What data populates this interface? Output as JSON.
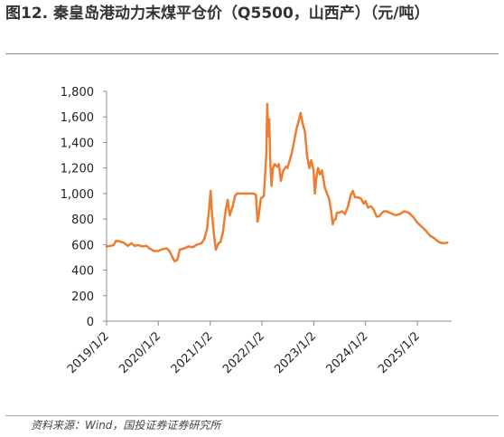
{
  "figure": {
    "title": "图12. 秦皇岛港动力末煤平仓价（Q5500，山西产）（元/吨）",
    "source": "资料来源：Wind，国投证券证券研究所"
  },
  "chart_data": {
    "type": "line",
    "title": "图12. 秦皇岛港动力末煤平仓价（Q5500，山西产）（元/吨）",
    "xlabel": "",
    "ylabel": "",
    "ylim": [
      0,
      1800
    ],
    "yticks": [
      "0",
      "200",
      "400",
      "600",
      "800",
      "1,000",
      "1,200",
      "1,400",
      "1,600",
      "1,800"
    ],
    "xticks": [
      "2019/1/2",
      "2020/1/2",
      "2021/1/2",
      "2022/1/2",
      "2023/1/2",
      "2024/1/2",
      "2025/1/2"
    ],
    "xlim": [
      "2019-01-02",
      "2025-08-31"
    ],
    "grid": false,
    "color": "#ED7D31",
    "series": [
      {
        "values": [
          [
            "2019-01-02",
            585
          ],
          [
            "2019-02-01",
            590
          ],
          [
            "2019-02-20",
            595
          ],
          [
            "2019-03-10",
            630
          ],
          [
            "2019-04-05",
            625
          ],
          [
            "2019-05-01",
            615
          ],
          [
            "2019-06-01",
            590
          ],
          [
            "2019-06-25",
            610
          ],
          [
            "2019-07-20",
            590
          ],
          [
            "2019-08-15",
            595
          ],
          [
            "2019-09-15",
            585
          ],
          [
            "2019-10-10",
            590
          ],
          [
            "2019-11-01",
            570
          ],
          [
            "2019-12-01",
            550
          ],
          [
            "2020-01-02",
            550
          ],
          [
            "2020-02-01",
            565
          ],
          [
            "2020-03-01",
            570
          ],
          [
            "2020-03-20",
            550
          ],
          [
            "2020-04-10",
            500
          ],
          [
            "2020-04-25",
            470
          ],
          [
            "2020-05-15",
            480
          ],
          [
            "2020-06-01",
            560
          ],
          [
            "2020-07-01",
            570
          ],
          [
            "2020-08-01",
            585
          ],
          [
            "2020-09-01",
            580
          ],
          [
            "2020-10-01",
            600
          ],
          [
            "2020-11-01",
            610
          ],
          [
            "2020-11-20",
            640
          ],
          [
            "2020-12-10",
            720
          ],
          [
            "2020-12-25",
            880
          ],
          [
            "2021-01-05",
            1020
          ],
          [
            "2021-01-15",
            830
          ],
          [
            "2021-02-01",
            640
          ],
          [
            "2021-02-10",
            560
          ],
          [
            "2021-03-01",
            610
          ],
          [
            "2021-03-15",
            620
          ],
          [
            "2021-04-01",
            690
          ],
          [
            "2021-04-20",
            860
          ],
          [
            "2021-05-05",
            950
          ],
          [
            "2021-05-20",
            830
          ],
          [
            "2021-06-10",
            900
          ],
          [
            "2021-06-25",
            980
          ],
          [
            "2021-07-10",
            1000
          ],
          [
            "2021-09-01",
            1000
          ],
          [
            "2021-10-01",
            1000
          ],
          [
            "2021-11-01",
            1000
          ],
          [
            "2021-11-20",
            990
          ],
          [
            "2021-12-01",
            780
          ],
          [
            "2021-12-10",
            830
          ],
          [
            "2021-12-25",
            960
          ],
          [
            "2022-01-15",
            980
          ],
          [
            "2022-02-01",
            1300
          ],
          [
            "2022-02-08",
            1700
          ],
          [
            "2022-02-15",
            1450
          ],
          [
            "2022-02-22",
            1580
          ],
          [
            "2022-03-01",
            1250
          ],
          [
            "2022-03-10",
            1060
          ],
          [
            "2022-03-20",
            1200
          ],
          [
            "2022-04-01",
            1230
          ],
          [
            "2022-04-20",
            1210
          ],
          [
            "2022-05-01",
            1230
          ],
          [
            "2022-05-15",
            1100
          ],
          [
            "2022-06-01",
            1180
          ],
          [
            "2022-06-20",
            1210
          ],
          [
            "2022-07-01",
            1200
          ],
          [
            "2022-08-01",
            1320
          ],
          [
            "2022-09-01",
            1500
          ],
          [
            "2022-09-20",
            1580
          ],
          [
            "2022-10-01",
            1630
          ],
          [
            "2022-10-15",
            1550
          ],
          [
            "2022-11-01",
            1480
          ],
          [
            "2022-11-15",
            1300
          ],
          [
            "2022-12-01",
            1200
          ],
          [
            "2022-12-15",
            1260
          ],
          [
            "2023-01-01",
            1180
          ],
          [
            "2023-01-10",
            1000
          ],
          [
            "2023-01-20",
            1120
          ],
          [
            "2023-02-01",
            1200
          ],
          [
            "2023-02-15",
            1150
          ],
          [
            "2023-03-01",
            1180
          ],
          [
            "2023-03-20",
            1050
          ],
          [
            "2023-04-05",
            1000
          ],
          [
            "2023-04-20",
            960
          ],
          [
            "2023-05-05",
            860
          ],
          [
            "2023-05-15",
            760
          ],
          [
            "2023-05-25",
            790
          ],
          [
            "2023-06-05",
            800
          ],
          [
            "2023-06-15",
            850
          ],
          [
            "2023-07-01",
            850
          ],
          [
            "2023-07-20",
            860
          ],
          [
            "2023-08-10",
            840
          ],
          [
            "2023-09-01",
            900
          ],
          [
            "2023-09-20",
            990
          ],
          [
            "2023-10-05",
            1020
          ],
          [
            "2023-10-20",
            970
          ],
          [
            "2023-11-10",
            970
          ],
          [
            "2023-12-01",
            960
          ],
          [
            "2023-12-20",
            920
          ],
          [
            "2024-01-02",
            940
          ],
          [
            "2024-01-20",
            890
          ],
          [
            "2024-02-10",
            900
          ],
          [
            "2024-03-01",
            870
          ],
          [
            "2024-03-20",
            820
          ],
          [
            "2024-04-05",
            820
          ],
          [
            "2024-04-20",
            840
          ],
          [
            "2024-05-10",
            860
          ],
          [
            "2024-06-01",
            860
          ],
          [
            "2024-06-20",
            850
          ],
          [
            "2024-07-10",
            840
          ],
          [
            "2024-08-01",
            830
          ],
          [
            "2024-09-01",
            840
          ],
          [
            "2024-10-01",
            860
          ],
          [
            "2024-11-01",
            850
          ],
          [
            "2024-12-01",
            820
          ],
          [
            "2025-01-02",
            770
          ],
          [
            "2025-02-01",
            740
          ],
          [
            "2025-03-01",
            710
          ],
          [
            "2025-04-01",
            670
          ],
          [
            "2025-05-01",
            650
          ],
          [
            "2025-06-01",
            620
          ],
          [
            "2025-07-01",
            610
          ],
          [
            "2025-08-01",
            615
          ]
        ]
      }
    ]
  }
}
